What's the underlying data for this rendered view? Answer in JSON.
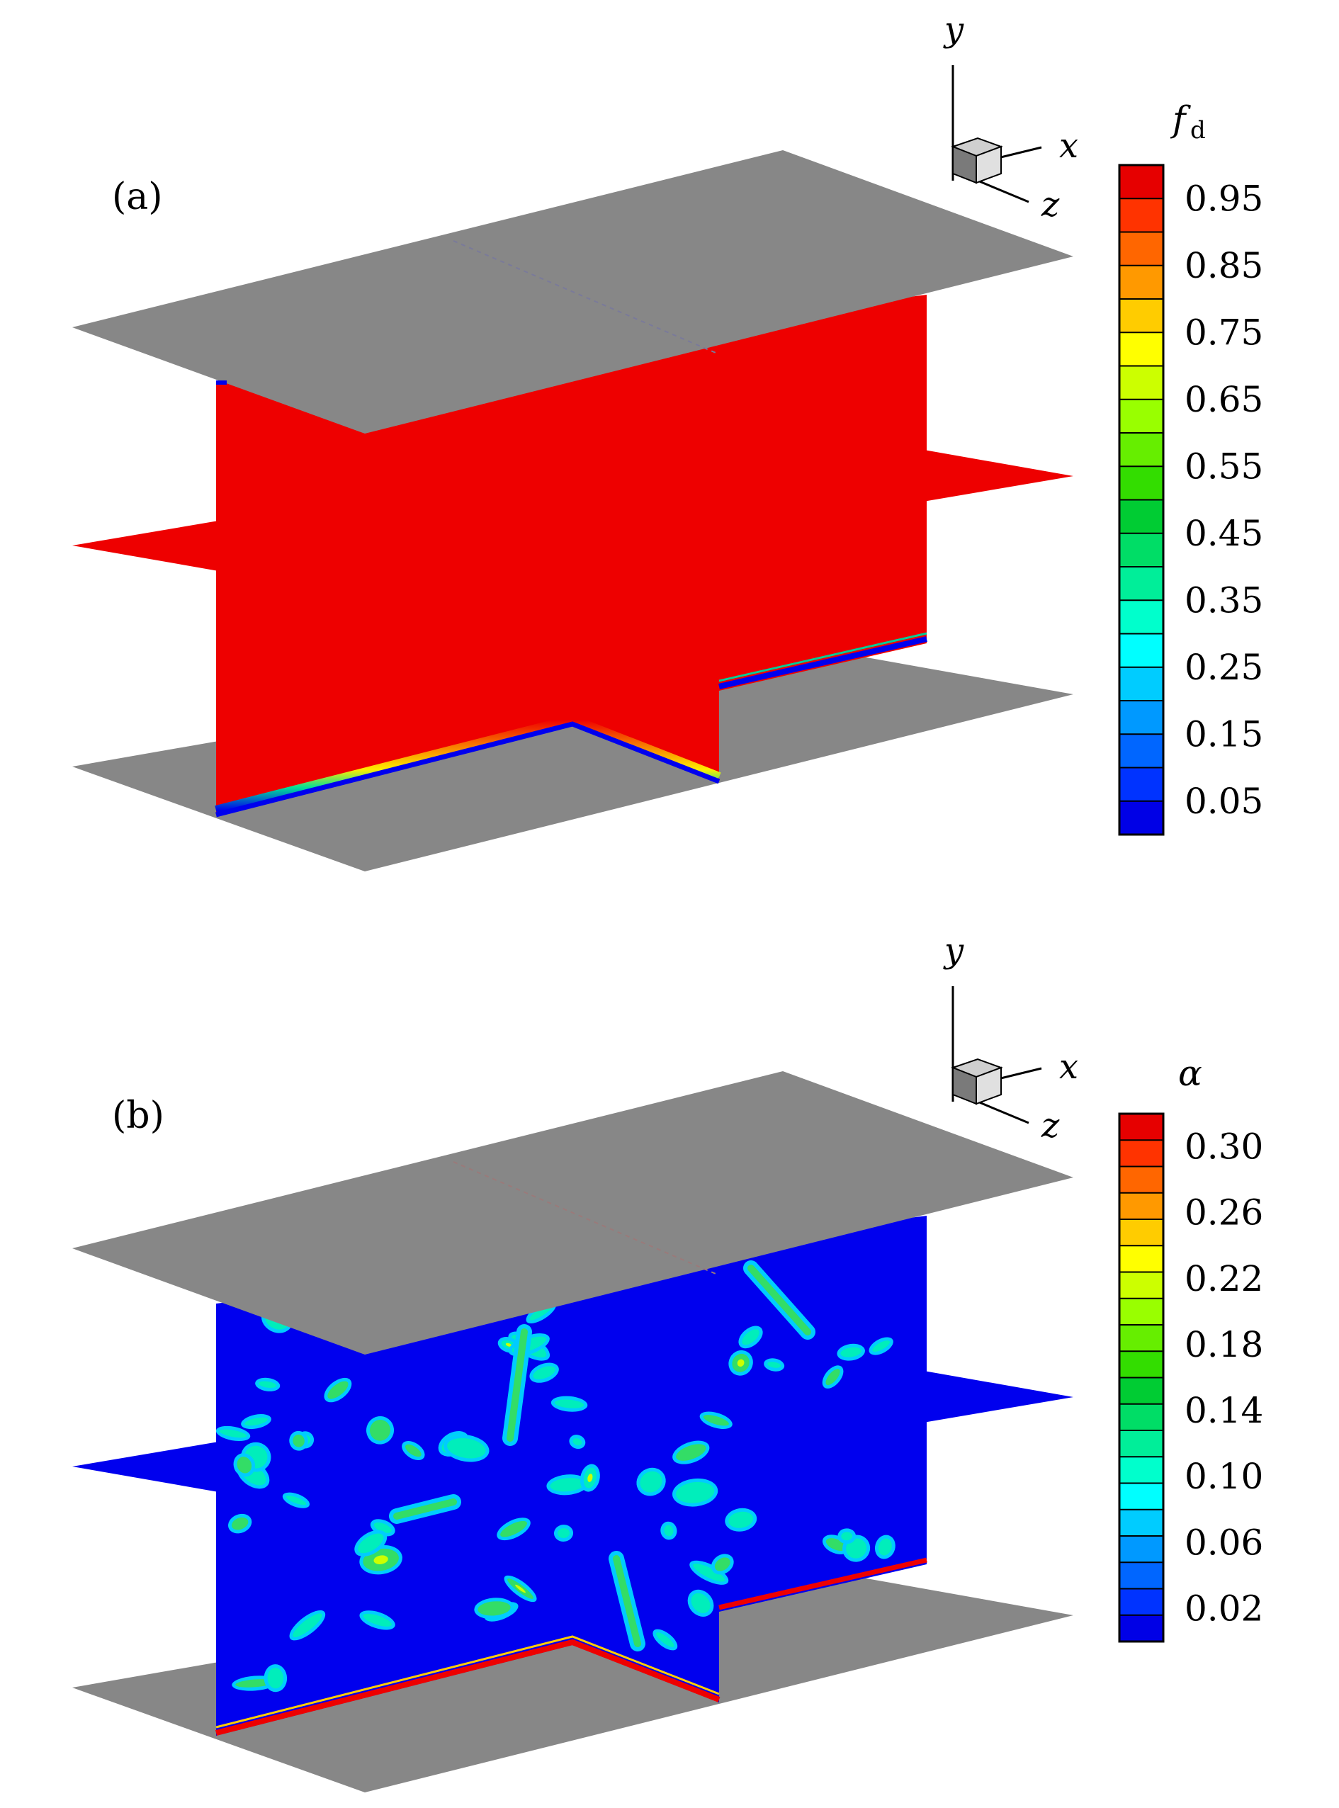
{
  "panels": [
    {
      "id": "a",
      "label": "(a)",
      "axes": {
        "x": "x",
        "y": "y",
        "z": "z"
      },
      "colorbar": {
        "title_main": "f",
        "title_sub": "d",
        "ticks": [
          "0.95",
          "0.85",
          "0.75",
          "0.65",
          "0.55",
          "0.45",
          "0.35",
          "0.25",
          "0.15",
          "0.05"
        ],
        "colors": [
          "#e60000",
          "#ff3300",
          "#ff6600",
          "#ff9900",
          "#ffcc00",
          "#ffff00",
          "#ccff00",
          "#99ff00",
          "#66ee00",
          "#33dd00",
          "#00cc33",
          "#00dd66",
          "#00ee99",
          "#00ffcc",
          "#00ffff",
          "#00ccff",
          "#0099ff",
          "#0066ff",
          "#0033ff",
          "#0000e6"
        ]
      },
      "field_color": "#ee0000",
      "wall_color": "#0000ee"
    },
    {
      "id": "b",
      "label": "(b)",
      "axes": {
        "x": "x",
        "y": "y",
        "z": "z"
      },
      "colorbar": {
        "title_main": "α",
        "title_sub": "",
        "ticks": [
          "0.30",
          "0.26",
          "0.22",
          "0.18",
          "0.14",
          "0.10",
          "0.06",
          "0.02"
        ],
        "colors": [
          "#e60000",
          "#ff3300",
          "#ff6600",
          "#ff9900",
          "#ffcc00",
          "#ffff00",
          "#ccff00",
          "#99ff00",
          "#66ee00",
          "#33dd00",
          "#00cc33",
          "#00dd66",
          "#00ee99",
          "#00ffcc",
          "#00ffff",
          "#00ccff",
          "#0099ff",
          "#0066ff",
          "#0033ff",
          "#0000e6"
        ]
      },
      "field_color": "#0000ee",
      "wall_color": "#ee0000"
    }
  ],
  "plate_color": "#878787"
}
